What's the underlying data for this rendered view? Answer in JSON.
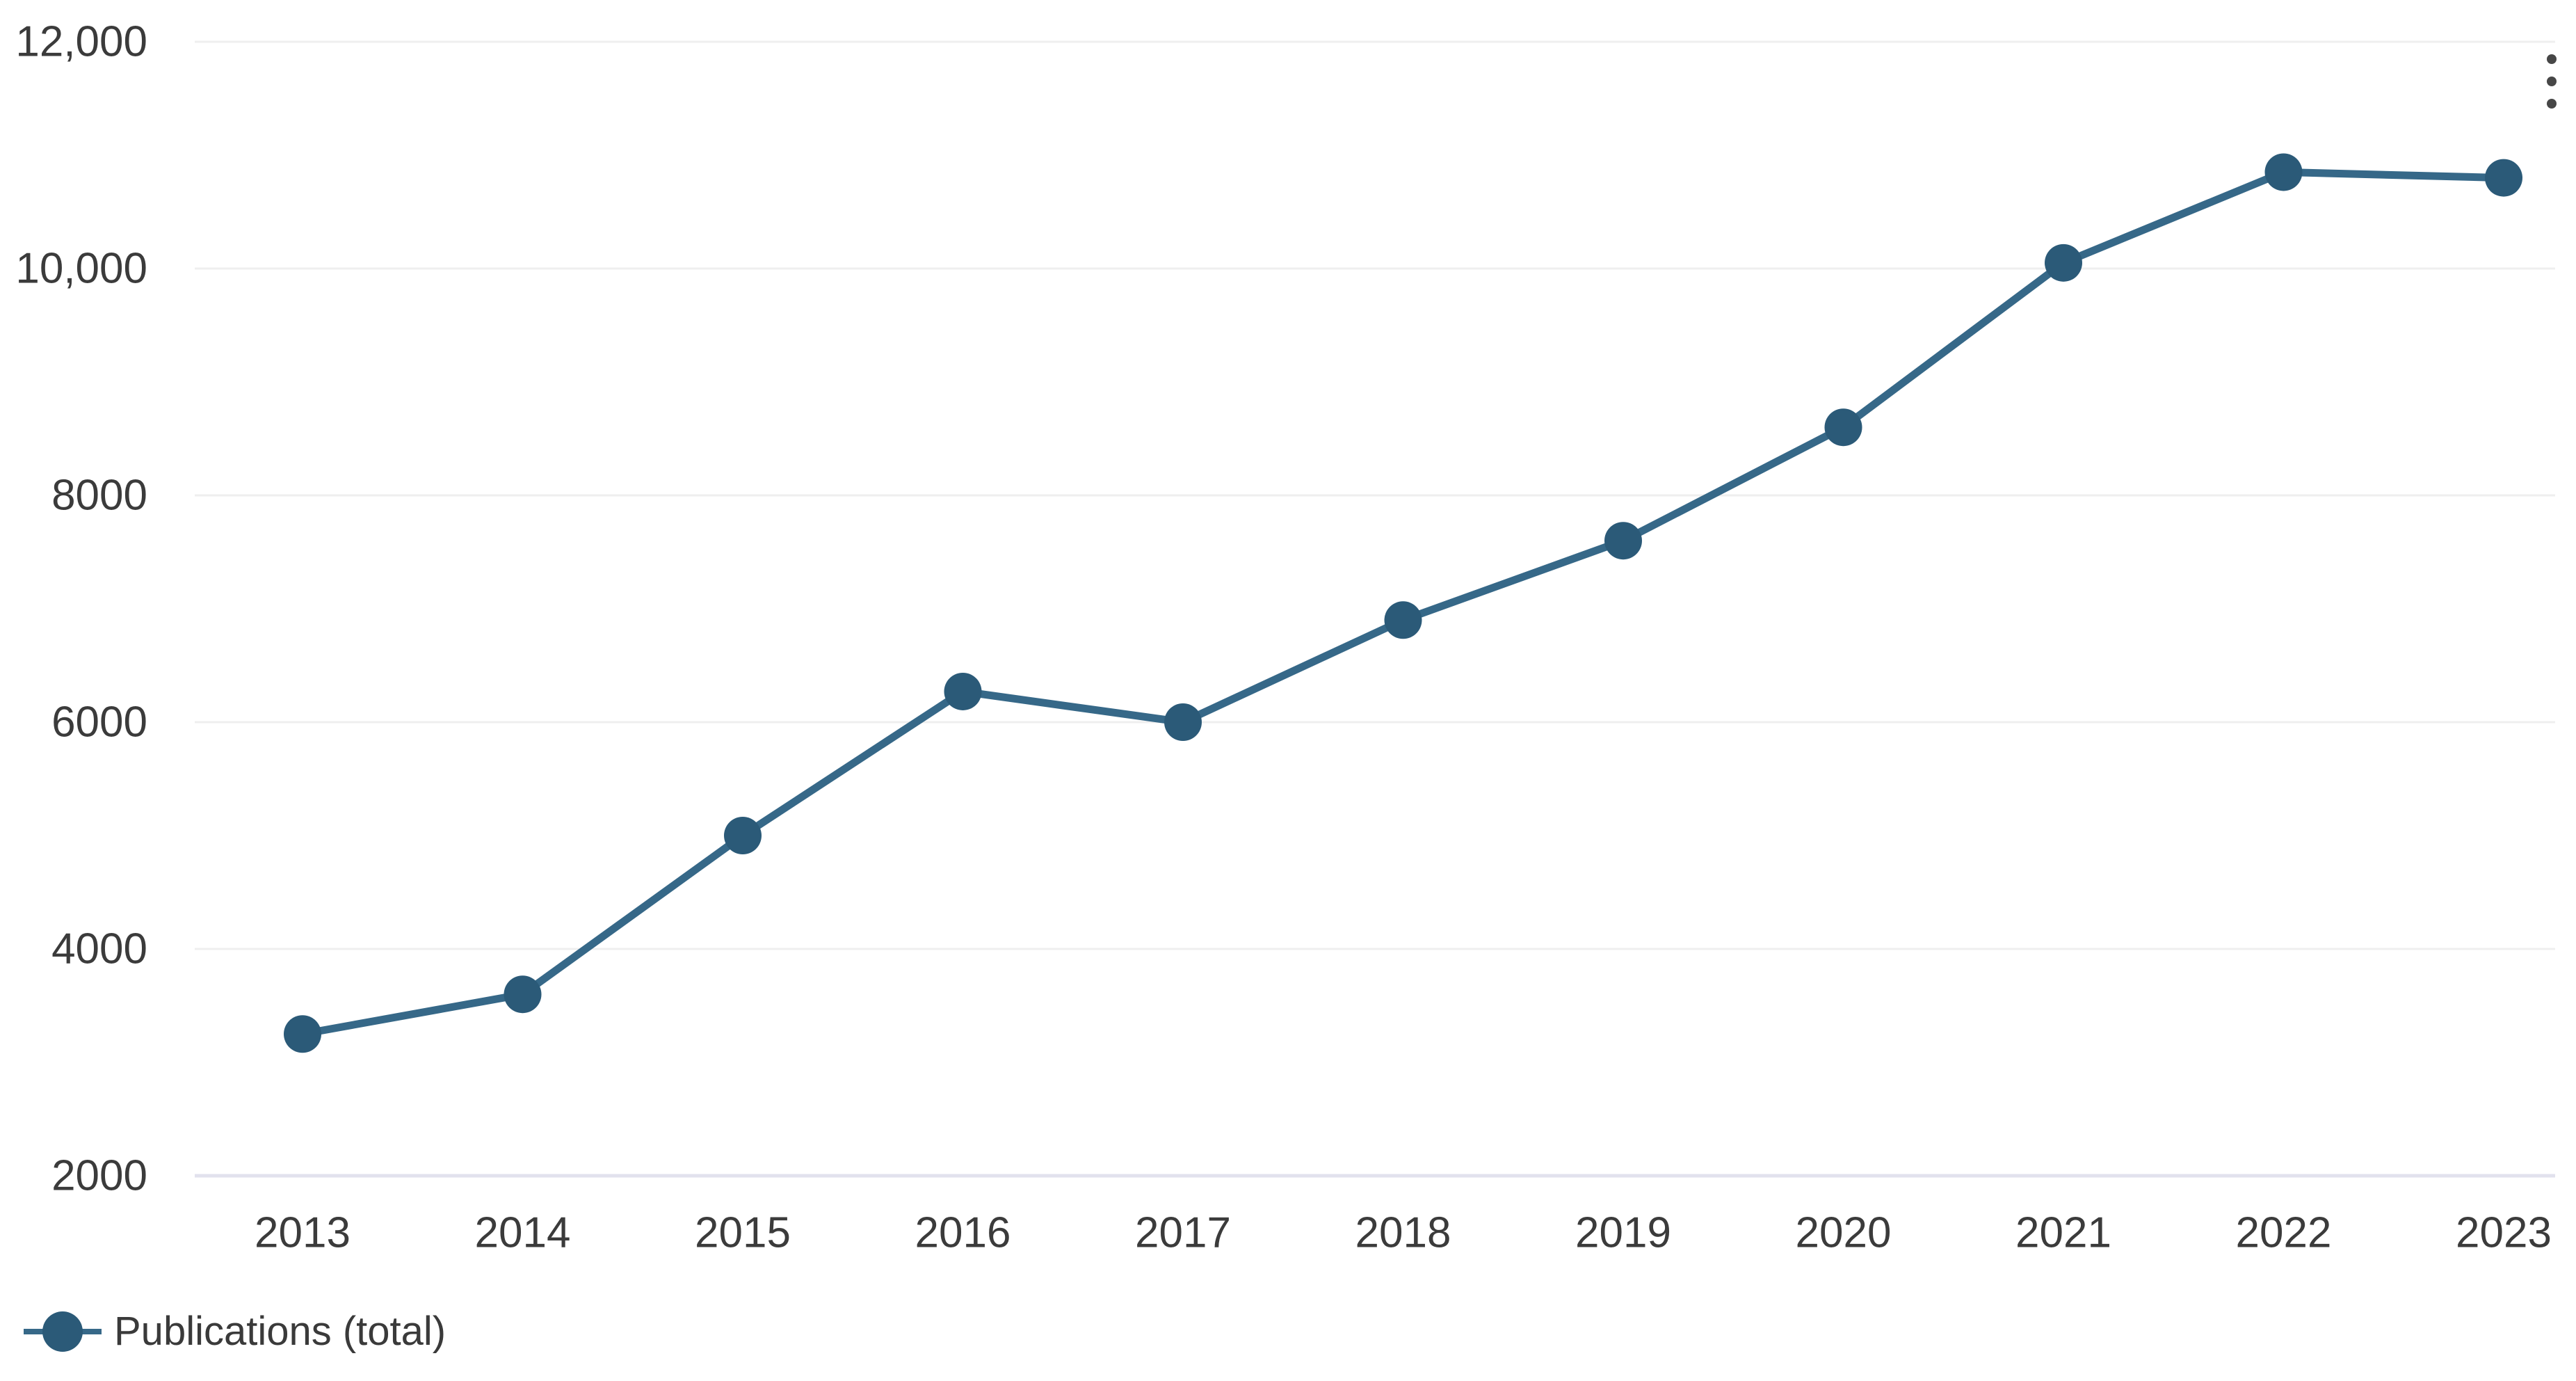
{
  "chart_data": {
    "type": "line",
    "title": "",
    "xlabel": "",
    "ylabel": "",
    "categories": [
      "2013",
      "2014",
      "2015",
      "2016",
      "2017",
      "2018",
      "2019",
      "2020",
      "2021",
      "2022",
      "2023"
    ],
    "series": [
      {
        "name": "Publications (total)",
        "values": [
          3250,
          3600,
          5000,
          6270,
          6000,
          6900,
          7600,
          8600,
          10050,
          10850,
          10800
        ]
      }
    ],
    "ylim": [
      2000,
      12000
    ],
    "y_ticks": [
      {
        "label": "12,000",
        "value": 12000
      },
      {
        "label": "10,000",
        "value": 10000
      },
      {
        "label": "8000",
        "value": 8000
      },
      {
        "label": "6000",
        "value": 6000
      },
      {
        "label": "4000",
        "value": 4000
      },
      {
        "label": "2000",
        "value": 2000
      }
    ],
    "grid": "horizontal",
    "legend_position": "bottom-left",
    "colors": {
      "line": "#366888",
      "marker": "#2b5a78",
      "gridline": "#efefef",
      "axis_baseline": "#e2e2ed",
      "tick_text": "#3b3b3b",
      "legend_text": "#3a3a3a",
      "menu_icon": "#474747"
    }
  },
  "menu": {
    "icon": "kebab-vertical-icon"
  }
}
